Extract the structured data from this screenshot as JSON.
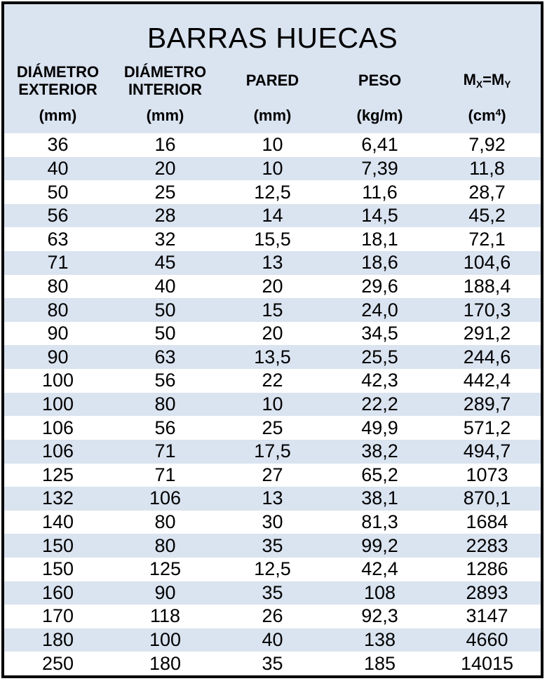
{
  "title": "BARRAS HUECAS",
  "colors": {
    "header_fill": "#dae3f0",
    "row_alt_fill": "#dae3f0",
    "row_fill": "#ffffff",
    "border": "#000000",
    "text": "#000000",
    "page_bg": "#ffffff"
  },
  "table": {
    "columns": [
      {
        "name_lines": [
          "DIÁMETRO",
          "EXTERIOR"
        ],
        "unit": "(mm)"
      },
      {
        "name_lines": [
          "DIÁMETRO",
          "INTERIOR"
        ],
        "unit": "(mm)"
      },
      {
        "name_lines": [
          "PARED"
        ],
        "unit": "(mm)"
      },
      {
        "name_lines": [
          "PESO"
        ],
        "unit": "(kg/m)"
      },
      {
        "name_rich": {
          "base1": "M",
          "sub1": "X",
          "equals": "=",
          "base2": "M",
          "sub2": "Y"
        },
        "unit_rich": {
          "pre": "(cm",
          "sup": "4",
          "post": ")"
        }
      }
    ],
    "rows": [
      [
        "36",
        "16",
        "10",
        "6,41",
        "7,92"
      ],
      [
        "40",
        "20",
        "10",
        "7,39",
        "11,8"
      ],
      [
        "50",
        "25",
        "12,5",
        "11,6",
        "28,7"
      ],
      [
        "56",
        "28",
        "14",
        "14,5",
        "45,2"
      ],
      [
        "63",
        "32",
        "15,5",
        "18,1",
        "72,1"
      ],
      [
        "71",
        "45",
        "13",
        "18,6",
        "104,6"
      ],
      [
        "80",
        "40",
        "20",
        "29,6",
        "188,4"
      ],
      [
        "80",
        "50",
        "15",
        "24,0",
        "170,3"
      ],
      [
        "90",
        "50",
        "20",
        "34,5",
        "291,2"
      ],
      [
        "90",
        "63",
        "13,5",
        "25,5",
        "244,6"
      ],
      [
        "100",
        "56",
        "22",
        "42,3",
        "442,4"
      ],
      [
        "100",
        "80",
        "10",
        "22,2",
        "289,7"
      ],
      [
        "106",
        "56",
        "25",
        "49,9",
        "571,2"
      ],
      [
        "106",
        "71",
        "17,5",
        "38,2",
        "494,7"
      ],
      [
        "125",
        "71",
        "27",
        "65,2",
        "1073"
      ],
      [
        "132",
        "106",
        "13",
        "38,1",
        "870,1"
      ],
      [
        "140",
        "80",
        "30",
        "81,3",
        "1684"
      ],
      [
        "150",
        "80",
        "35",
        "99,2",
        "2283"
      ],
      [
        "150",
        "125",
        "12,5",
        "42,4",
        "1286"
      ],
      [
        "160",
        "90",
        "35",
        "108",
        "2893"
      ],
      [
        "170",
        "118",
        "26",
        "92,3",
        "3147"
      ],
      [
        "180",
        "100",
        "40",
        "138",
        "4660"
      ],
      [
        "250",
        "180",
        "35",
        "185",
        "14015"
      ]
    ]
  }
}
